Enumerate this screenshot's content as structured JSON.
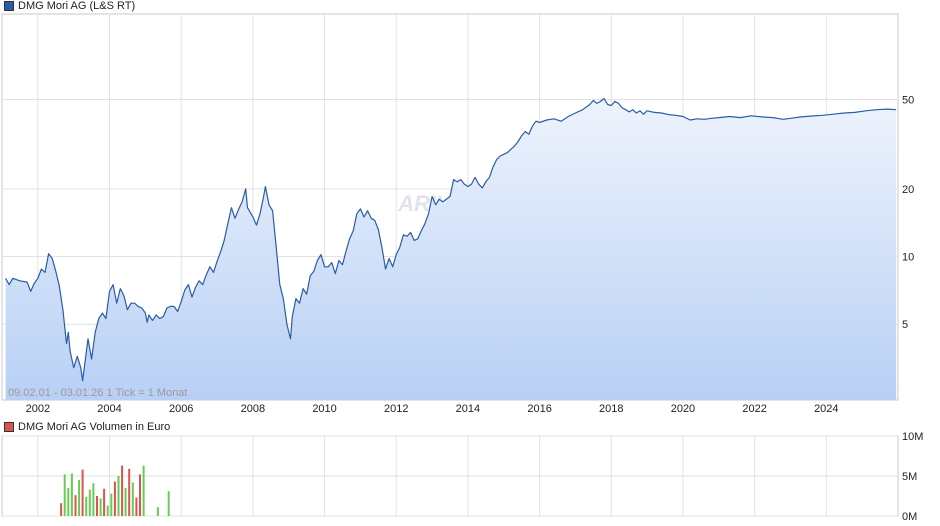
{
  "chart_data": [
    {
      "type": "area",
      "title": "DMG Mori AG (L&S RT)",
      "color": "#2a5ca8",
      "fill_top": "#eef3fc",
      "fill_bottom": "#b8d0f5",
      "y_scale": "log",
      "ylim": [
        2.3,
        120
      ],
      "xlim": [
        2001.0,
        2026.0
      ],
      "y_ticks": [
        5,
        10,
        20,
        50
      ],
      "y_tick_labels": [
        "5",
        "10",
        "20",
        "50"
      ],
      "x_ticks": [
        2002,
        2004,
        2006,
        2008,
        2010,
        2012,
        2014,
        2016,
        2018,
        2020,
        2022,
        2024
      ],
      "x_tick_labels": [
        "2002",
        "2004",
        "2006",
        "2008",
        "2010",
        "2012",
        "2014",
        "2016",
        "2018",
        "2020",
        "2022",
        "2024"
      ],
      "range_note": "09.02.01 - 03.01.26   1 Tick = 1 Monat",
      "watermark": "ARIVA.DE",
      "grid": true,
      "series": [
        {
          "points": [
            [
              2001.1,
              8.0
            ],
            [
              2001.2,
              7.5
            ],
            [
              2001.3,
              8.0
            ],
            [
              2001.5,
              7.8
            ],
            [
              2001.7,
              7.7
            ],
            [
              2001.8,
              7.0
            ],
            [
              2001.9,
              7.6
            ],
            [
              2002.0,
              8.0
            ],
            [
              2002.1,
              8.8
            ],
            [
              2002.2,
              8.5
            ],
            [
              2002.3,
              10.3
            ],
            [
              2002.4,
              9.8
            ],
            [
              2002.5,
              8.6
            ],
            [
              2002.6,
              7.4
            ],
            [
              2002.7,
              5.8
            ],
            [
              2002.8,
              4.1
            ],
            [
              2002.85,
              4.6
            ],
            [
              2002.9,
              3.8
            ],
            [
              2003.0,
              3.2
            ],
            [
              2003.1,
              3.6
            ],
            [
              2003.2,
              3.2
            ],
            [
              2003.25,
              2.8
            ],
            [
              2003.4,
              4.3
            ],
            [
              2003.5,
              3.5
            ],
            [
              2003.6,
              4.6
            ],
            [
              2003.7,
              5.3
            ],
            [
              2003.8,
              5.6
            ],
            [
              2003.9,
              5.3
            ],
            [
              2004.0,
              7.0
            ],
            [
              2004.1,
              7.5
            ],
            [
              2004.2,
              6.2
            ],
            [
              2004.3,
              7.2
            ],
            [
              2004.4,
              6.7
            ],
            [
              2004.5,
              5.8
            ],
            [
              2004.6,
              6.2
            ],
            [
              2004.7,
              6.2
            ],
            [
              2004.8,
              6.0
            ],
            [
              2004.9,
              5.9
            ],
            [
              2005.0,
              5.6
            ],
            [
              2005.05,
              5.1
            ],
            [
              2005.1,
              5.5
            ],
            [
              2005.2,
              5.2
            ],
            [
              2005.3,
              5.5
            ],
            [
              2005.4,
              5.3
            ],
            [
              2005.5,
              5.4
            ],
            [
              2005.6,
              5.9
            ],
            [
              2005.7,
              6.0
            ],
            [
              2005.8,
              6.0
            ],
            [
              2005.9,
              5.7
            ],
            [
              2006.0,
              6.3
            ],
            [
              2006.1,
              7.1
            ],
            [
              2006.2,
              7.5
            ],
            [
              2006.3,
              6.6
            ],
            [
              2006.4,
              7.3
            ],
            [
              2006.5,
              7.8
            ],
            [
              2006.6,
              7.5
            ],
            [
              2006.7,
              8.3
            ],
            [
              2006.8,
              9.0
            ],
            [
              2006.9,
              8.5
            ],
            [
              2007.0,
              9.5
            ],
            [
              2007.1,
              10.5
            ],
            [
              2007.2,
              11.8
            ],
            [
              2007.3,
              14.0
            ],
            [
              2007.4,
              16.5
            ],
            [
              2007.5,
              14.8
            ],
            [
              2007.6,
              16.2
            ],
            [
              2007.7,
              17.5
            ],
            [
              2007.8,
              20.0
            ],
            [
              2007.85,
              16.5
            ],
            [
              2008.0,
              15.0
            ],
            [
              2008.1,
              13.8
            ],
            [
              2008.2,
              15.5
            ],
            [
              2008.3,
              18.5
            ],
            [
              2008.35,
              20.5
            ],
            [
              2008.45,
              17.0
            ],
            [
              2008.55,
              16.0
            ],
            [
              2008.65,
              11.0
            ],
            [
              2008.75,
              7.5
            ],
            [
              2008.85,
              6.5
            ],
            [
              2008.95,
              5.0
            ],
            [
              2009.05,
              4.3
            ],
            [
              2009.1,
              5.4
            ],
            [
              2009.2,
              6.5
            ],
            [
              2009.3,
              6.2
            ],
            [
              2009.4,
              7.2
            ],
            [
              2009.5,
              6.8
            ],
            [
              2009.6,
              8.2
            ],
            [
              2009.7,
              8.6
            ],
            [
              2009.8,
              9.6
            ],
            [
              2009.9,
              10.2
            ],
            [
              2010.0,
              9.0
            ],
            [
              2010.1,
              9.0
            ],
            [
              2010.2,
              9.4
            ],
            [
              2010.3,
              8.4
            ],
            [
              2010.4,
              9.6
            ],
            [
              2010.5,
              9.2
            ],
            [
              2010.6,
              10.6
            ],
            [
              2010.7,
              12.0
            ],
            [
              2010.8,
              13.0
            ],
            [
              2010.9,
              15.5
            ],
            [
              2011.0,
              16.3
            ],
            [
              2011.1,
              15.0
            ],
            [
              2011.2,
              16.0
            ],
            [
              2011.3,
              14.8
            ],
            [
              2011.4,
              14.5
            ],
            [
              2011.5,
              13.2
            ],
            [
              2011.6,
              11.0
            ],
            [
              2011.7,
              8.8
            ],
            [
              2011.8,
              9.8
            ],
            [
              2011.9,
              9.0
            ],
            [
              2012.0,
              10.2
            ],
            [
              2012.1,
              11.0
            ],
            [
              2012.2,
              12.5
            ],
            [
              2012.3,
              12.3
            ],
            [
              2012.4,
              12.8
            ],
            [
              2012.5,
              11.8
            ],
            [
              2012.6,
              12.0
            ],
            [
              2012.7,
              13.0
            ],
            [
              2012.8,
              14.0
            ],
            [
              2012.9,
              15.5
            ],
            [
              2013.0,
              18.5
            ],
            [
              2013.1,
              17.0
            ],
            [
              2013.2,
              18.0
            ],
            [
              2013.3,
              17.5
            ],
            [
              2013.5,
              18.5
            ],
            [
              2013.6,
              22.0
            ],
            [
              2013.7,
              21.5
            ],
            [
              2013.8,
              22.0
            ],
            [
              2013.9,
              21.0
            ],
            [
              2014.0,
              20.5
            ],
            [
              2014.1,
              21.0
            ],
            [
              2014.2,
              22.5
            ],
            [
              2014.3,
              21.0
            ],
            [
              2014.4,
              20.2
            ],
            [
              2014.5,
              21.5
            ],
            [
              2014.6,
              22.5
            ],
            [
              2014.7,
              25.0
            ],
            [
              2014.8,
              27.0
            ],
            [
              2014.9,
              28.0
            ],
            [
              2015.0,
              28.5
            ],
            [
              2015.1,
              29.0
            ],
            [
              2015.2,
              30.0
            ],
            [
              2015.3,
              31.0
            ],
            [
              2015.4,
              32.5
            ],
            [
              2015.5,
              34.5
            ],
            [
              2015.6,
              36.0
            ],
            [
              2015.7,
              35.0
            ],
            [
              2015.8,
              38.0
            ],
            [
              2015.9,
              40.0
            ],
            [
              2016.0,
              39.5
            ],
            [
              2016.2,
              40.5
            ],
            [
              2016.4,
              41.0
            ],
            [
              2016.6,
              40.0
            ],
            [
              2016.8,
              42.0
            ],
            [
              2017.0,
              43.5
            ],
            [
              2017.2,
              45.0
            ],
            [
              2017.4,
              47.5
            ],
            [
              2017.5,
              49.5
            ],
            [
              2017.6,
              48.0
            ],
            [
              2017.7,
              49.0
            ],
            [
              2017.8,
              50.5
            ],
            [
              2017.9,
              47.5
            ],
            [
              2018.0,
              47.0
            ],
            [
              2018.1,
              49.0
            ],
            [
              2018.2,
              48.0
            ],
            [
              2018.3,
              46.0
            ],
            [
              2018.4,
              45.0
            ],
            [
              2018.5,
              44.0
            ],
            [
              2018.6,
              45.0
            ],
            [
              2018.7,
              43.5
            ],
            [
              2018.8,
              44.5
            ],
            [
              2018.9,
              43.0
            ],
            [
              2019.0,
              44.5
            ],
            [
              2019.2,
              43.8
            ],
            [
              2019.4,
              43.5
            ],
            [
              2019.6,
              42.8
            ],
            [
              2019.8,
              42.5
            ],
            [
              2020.0,
              42.0
            ],
            [
              2020.2,
              40.5
            ],
            [
              2020.4,
              41.0
            ],
            [
              2020.6,
              40.8
            ],
            [
              2020.8,
              41.2
            ],
            [
              2021.0,
              41.5
            ],
            [
              2021.3,
              42.0
            ],
            [
              2021.6,
              41.5
            ],
            [
              2021.9,
              42.3
            ],
            [
              2022.2,
              41.8
            ],
            [
              2022.5,
              41.5
            ],
            [
              2022.8,
              40.8
            ],
            [
              2023.0,
              41.2
            ],
            [
              2023.3,
              41.8
            ],
            [
              2023.6,
              42.2
            ],
            [
              2023.9,
              42.5
            ],
            [
              2024.2,
              43.0
            ],
            [
              2024.5,
              43.5
            ],
            [
              2024.8,
              43.8
            ],
            [
              2025.1,
              44.5
            ],
            [
              2025.4,
              45.0
            ],
            [
              2025.7,
              45.3
            ],
            [
              2025.95,
              45.0
            ]
          ]
        }
      ]
    },
    {
      "type": "bar",
      "title": "DMG Mori AG Volumen in Euro",
      "legend_color": "#d9534f",
      "up_color": "#66cc55",
      "down_color": "#d9534f",
      "ylim": [
        0,
        10000000
      ],
      "y_ticks": [
        0,
        5000000,
        10000000
      ],
      "y_tick_labels": [
        "0M",
        "5M",
        "10M"
      ],
      "xlim": [
        2001.0,
        2026.0
      ],
      "x_ticks": [
        2002,
        2004,
        2006,
        2008,
        2010,
        2012,
        2014,
        2016,
        2018,
        2020,
        2022,
        2024
      ],
      "grid": true,
      "bars": [
        [
          2002.65,
          1600000,
          "down"
        ],
        [
          2002.75,
          5200000,
          "up"
        ],
        [
          2002.85,
          3500000,
          "up"
        ],
        [
          2002.95,
          5300000,
          "up"
        ],
        [
          2003.05,
          2600000,
          "down"
        ],
        [
          2003.15,
          4500000,
          "up"
        ],
        [
          2003.25,
          5800000,
          "down"
        ],
        [
          2003.35,
          2400000,
          "up"
        ],
        [
          2003.45,
          3300000,
          "up"
        ],
        [
          2003.55,
          4100000,
          "up"
        ],
        [
          2003.65,
          2500000,
          "down"
        ],
        [
          2003.75,
          2200000,
          "up"
        ],
        [
          2003.85,
          3400000,
          "down"
        ],
        [
          2003.95,
          1300000,
          "up"
        ],
        [
          2004.05,
          2800000,
          "up"
        ],
        [
          2004.15,
          4300000,
          "down"
        ],
        [
          2004.25,
          5000000,
          "up"
        ],
        [
          2004.35,
          6300000,
          "down"
        ],
        [
          2004.45,
          3500000,
          "up"
        ],
        [
          2004.55,
          5900000,
          "down"
        ],
        [
          2004.65,
          4200000,
          "up"
        ],
        [
          2004.75,
          2300000,
          "down"
        ],
        [
          2004.85,
          5200000,
          "down"
        ],
        [
          2004.95,
          6300000,
          "up"
        ],
        [
          2005.35,
          1100000,
          "up"
        ],
        [
          2005.65,
          3100000,
          "up"
        ]
      ]
    }
  ]
}
